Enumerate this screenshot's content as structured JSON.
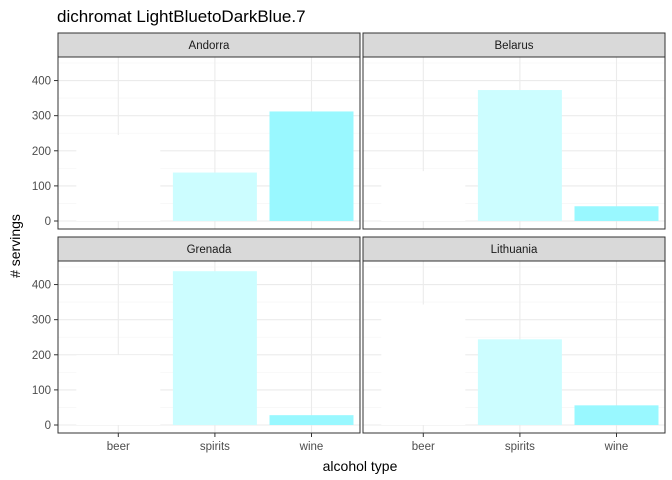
{
  "chart_data": {
    "type": "bar",
    "title": "dichromat LightBluetoDarkBlue.7",
    "xlabel": "alcohol type",
    "ylabel": "# servings",
    "categories": [
      "beer",
      "spirits",
      "wine"
    ],
    "ylim": [
      0,
      450
    ],
    "yticks": [
      0,
      100,
      200,
      300,
      400
    ],
    "grid": true,
    "facet_layout": "2x2",
    "fill_colors": {
      "beer": "#FFFFFF",
      "spirits": "#CCFDFF",
      "wine": "#99F8FF"
    },
    "panels": [
      {
        "name": "Andorra",
        "values": [
          245,
          138,
          312
        ]
      },
      {
        "name": "Belarus",
        "values": [
          142,
          373,
          42
        ]
      },
      {
        "name": "Grenada",
        "values": [
          199,
          438,
          28
        ]
      },
      {
        "name": "Lithuania",
        "values": [
          343,
          244,
          56
        ]
      }
    ]
  },
  "colors": {
    "strip_fill": "#D9D9D9",
    "panel_border": "#333333",
    "grid_major": "#EBEBEB",
    "grid_minor": "#F5F5F5"
  }
}
